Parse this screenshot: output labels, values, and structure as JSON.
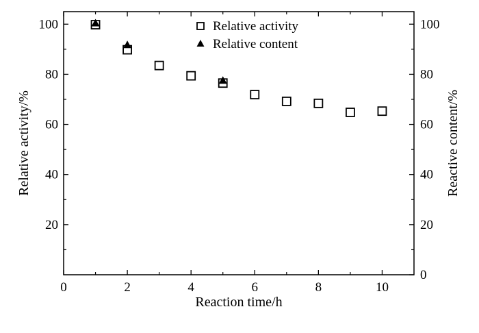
{
  "chart_data": {
    "type": "scatter",
    "xlabel": "Reaction time/h",
    "ylabel_left": "Relative activity/%",
    "ylabel_right": "Reactive content/%",
    "xlim": [
      0,
      11
    ],
    "ylim": [
      0,
      105
    ],
    "x_ticks": [
      "0",
      "2",
      "4",
      "6",
      "8",
      "10"
    ],
    "y_ticks_left": [
      "20",
      "40",
      "60",
      "80",
      "100"
    ],
    "y_ticks_right": [
      "0",
      "20",
      "40",
      "60",
      "80",
      "100"
    ],
    "grid": false,
    "legend_position": "top-center",
    "series": [
      {
        "name": "Relative activity",
        "marker": "open-square",
        "axis": "left",
        "x": [
          1,
          2,
          3,
          4,
          5,
          6,
          7,
          8,
          9,
          10
        ],
        "y": [
          99.8,
          89.8,
          83.5,
          79.4,
          76.5,
          71.9,
          69.2,
          68.4,
          64.8,
          65.3
        ]
      },
      {
        "name": "Relative content",
        "marker": "filled-triangle",
        "axis": "right",
        "x": [
          1,
          2,
          5
        ],
        "y": [
          100.5,
          91.8,
          77.6
        ]
      }
    ]
  }
}
